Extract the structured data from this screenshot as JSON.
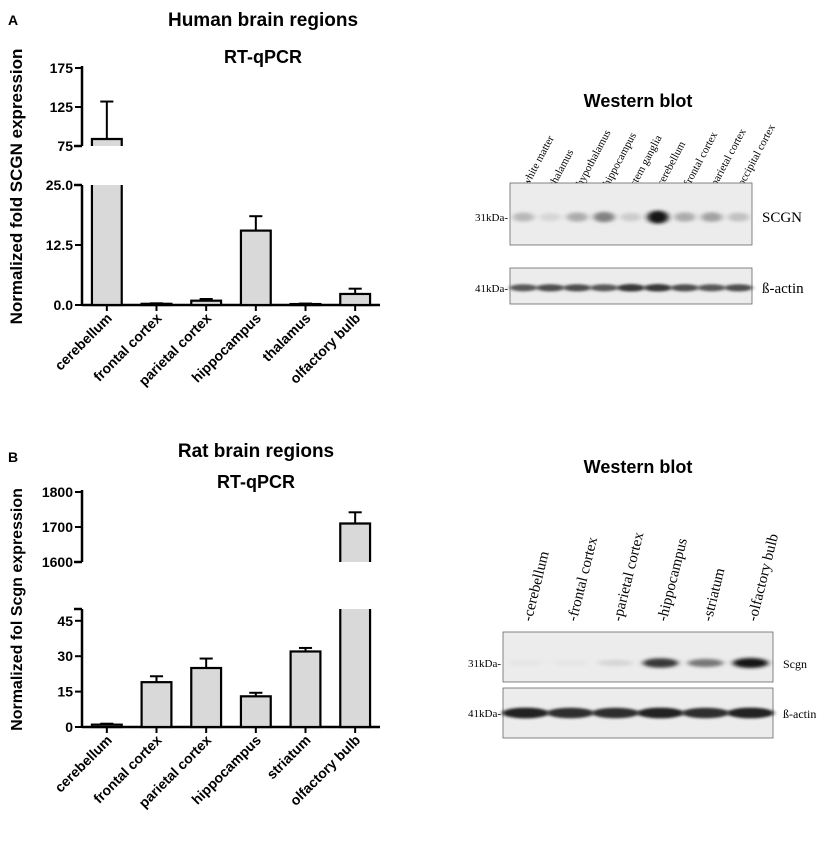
{
  "panels": [
    {
      "letter": "A",
      "title": "Human brain regions",
      "subtitle": "RT-qPCR",
      "chart_data": {
        "type": "bar",
        "title": "RT-qPCR",
        "ylabel": "Normalized fold SCGN expression",
        "categories": [
          "cerebellum",
          "frontal cortex",
          "parietal cortex",
          "hippocampus",
          "thalamus",
          "olfactory bulb"
        ],
        "values": [
          84,
          0.25,
          0.9,
          15.5,
          0.2,
          2.3
        ],
        "errors": [
          48,
          0.1,
          0.35,
          3,
          0.1,
          1.1
        ],
        "axis_break": true,
        "lower_segment": {
          "range": [
            0,
            25
          ],
          "ticks": [
            "0.0",
            "12.5",
            "25.0"
          ]
        },
        "upper_segment": {
          "range": [
            75,
            175
          ],
          "ticks": [
            "75",
            "125",
            "175"
          ]
        },
        "bar_color": "#d9d9d9",
        "grid": false
      },
      "blot": {
        "title": "Western blot",
        "lanes": [
          "-white matter",
          "-thalamus",
          "-hypothalamus",
          "-hippocampus",
          "-stem ganglia",
          "-cerebellum",
          "-frontal cortex",
          "-parietal cortex",
          "-occipital cortex"
        ],
        "bands": [
          {
            "marker": "31kDa-",
            "protein": "SCGN",
            "intensities": [
              0.25,
              0.1,
              0.3,
              0.5,
              0.15,
              1.0,
              0.3,
              0.35,
              0.2
            ]
          },
          {
            "marker": "41kDa-",
            "protein": "ß-actin",
            "intensities": [
              0.7,
              0.75,
              0.75,
              0.7,
              0.85,
              0.85,
              0.75,
              0.7,
              0.75
            ]
          }
        ]
      }
    },
    {
      "letter": "B",
      "title": "Rat brain regions",
      "subtitle": "RT-qPCR",
      "chart_data": {
        "type": "bar",
        "title": "RT-qPCR",
        "ylabel": "Normalized fol Scgn expression",
        "categories": [
          "cerebellum",
          "frontal cortex",
          "parietal cortex",
          "hippocampus",
          "striatum",
          "olfactory bulb"
        ],
        "values": [
          1,
          19,
          25,
          13,
          32,
          1710
        ],
        "errors": [
          0.4,
          2.5,
          4,
          1.5,
          1.5,
          32
        ],
        "axis_break": true,
        "lower_segment": {
          "range": [
            0,
            50
          ],
          "ticks": [
            "0",
            "15",
            "30",
            "45"
          ]
        },
        "upper_segment": {
          "range": [
            1600,
            1800
          ],
          "ticks": [
            "1600",
            "1700",
            "1800"
          ]
        },
        "bar_color": "#d9d9d9",
        "grid": false
      },
      "blot": {
        "title": "Western blot",
        "lanes": [
          "-cerebellum",
          "-frontal cortex",
          "-parietal cortex",
          "-hippocampus",
          "-striatum",
          "-olfactory bulb"
        ],
        "bands": [
          {
            "marker": "31kDa-",
            "protein": "Scgn",
            "intensities": [
              0.03,
              0.03,
              0.1,
              0.85,
              0.55,
              1.0
            ]
          },
          {
            "marker": "41kDa-",
            "protein": "ß-actin",
            "intensities": [
              0.95,
              0.9,
              0.9,
              0.95,
              0.9,
              0.95
            ]
          }
        ]
      }
    }
  ]
}
